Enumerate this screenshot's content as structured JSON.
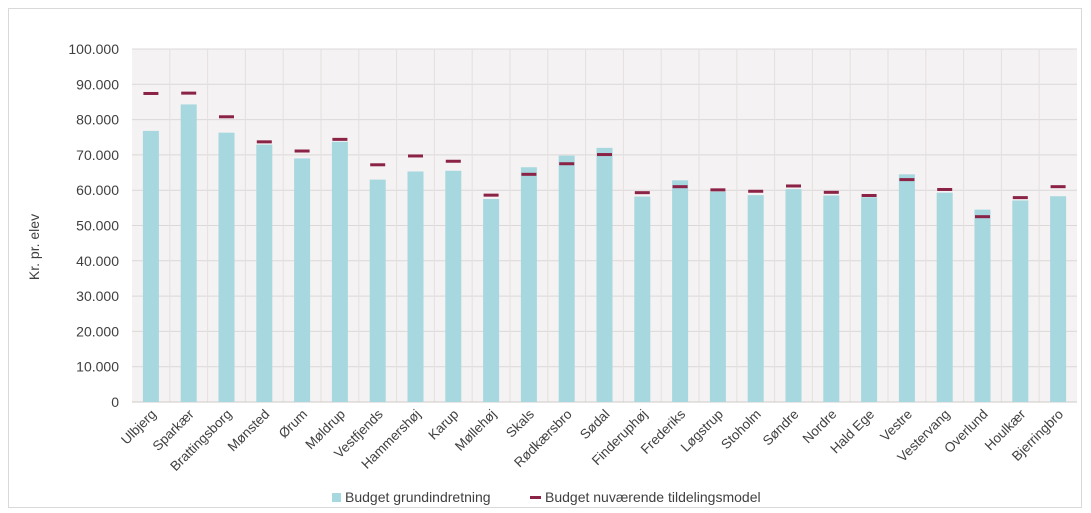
{
  "chart_data": {
    "type": "bar",
    "ylabel": "Kr. pr. elev",
    "ylim": [
      0,
      100000
    ],
    "ytick_step": 10000,
    "ytick_labels": [
      "0",
      "10.000",
      "20.000",
      "30.000",
      "40.000",
      "50.000",
      "60.000",
      "70.000",
      "80.000",
      "90.000",
      "100.000"
    ],
    "grid": true,
    "legend_position": "bottom",
    "categories": [
      "Ulbjerg",
      "Sparkær",
      "Brattingsborg",
      "Mønsted",
      "Ørum",
      "Møldrup",
      "Vestfjends",
      "Hammershøj",
      "Karup",
      "Møllehøj",
      "Skals",
      "Rødkærsbro",
      "Sødal",
      "Finderuphøj",
      "Frederiks",
      "Løgstrup",
      "Stoholm",
      "Søndre",
      "Nordre",
      "Hald Ege",
      "Vestre",
      "Vestervang",
      "Overlund",
      "Houlkær",
      "Bjerringbro"
    ],
    "series": [
      {
        "name": "Budget grundindretning",
        "kind": "bar",
        "color": "#A8D8DF",
        "values": [
          76800,
          84300,
          76300,
          72900,
          69000,
          73700,
          63000,
          65300,
          65500,
          57500,
          66500,
          69800,
          72000,
          58200,
          62800,
          59600,
          58600,
          60300,
          58500,
          58000,
          64500,
          59300,
          54500,
          57100,
          58300
        ]
      },
      {
        "name": "Budget nuværende tildelingsmodel",
        "kind": "dash",
        "color": "#8B2346",
        "values": [
          87400,
          87500,
          80800,
          73700,
          71100,
          74400,
          67200,
          69700,
          68200,
          58600,
          64500,
          67500,
          70100,
          59300,
          61000,
          60100,
          59700,
          61200,
          59400,
          58500,
          63000,
          60200,
          52500,
          57900,
          61000
        ]
      }
    ]
  }
}
